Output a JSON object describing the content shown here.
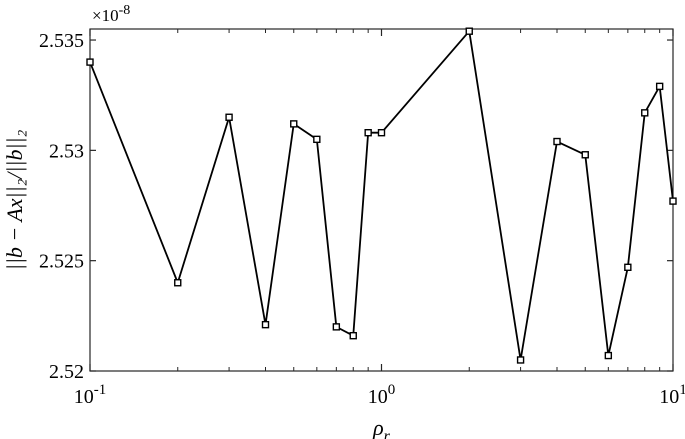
{
  "chart_data": {
    "type": "line",
    "x_scale": "log",
    "xlim": [
      0.1,
      10
    ],
    "ylim": [
      2.52,
      2.5355
    ],
    "y_multiplier": "×10",
    "y_multiplier_exp": "-8",
    "xlabel": "ρ",
    "xlabel_sub": "r",
    "ylabel": "||b − Ax||₂/||b||₂",
    "x_ticks": [
      {
        "value": 0.1,
        "base": "10",
        "exp": "-1"
      },
      {
        "value": 1,
        "base": "10",
        "exp": "0"
      },
      {
        "value": 10,
        "base": "10",
        "exp": "1"
      }
    ],
    "y_ticks": [
      {
        "value": 2.52,
        "label": "2.52"
      },
      {
        "value": 2.525,
        "label": "2.525"
      },
      {
        "value": 2.53,
        "label": "2.53"
      },
      {
        "value": 2.535,
        "label": "2.535"
      }
    ],
    "marker": "square",
    "line_color": "#000000",
    "series": [
      {
        "x": [
          0.1,
          0.2,
          0.3,
          0.4,
          0.5,
          0.6,
          0.7,
          0.8,
          0.9,
          1,
          2,
          3,
          4,
          5,
          6,
          7,
          8,
          9,
          10
        ],
        "values": [
          2.534,
          2.524,
          2.5315,
          2.5221,
          2.5312,
          2.5305,
          2.522,
          2.5216,
          2.5308,
          2.5308,
          2.5354,
          2.5205,
          2.5304,
          2.5298,
          2.5207,
          2.5247,
          2.5317,
          2.5329,
          2.5277
        ]
      }
    ],
    "grid": false,
    "legend": "none"
  }
}
